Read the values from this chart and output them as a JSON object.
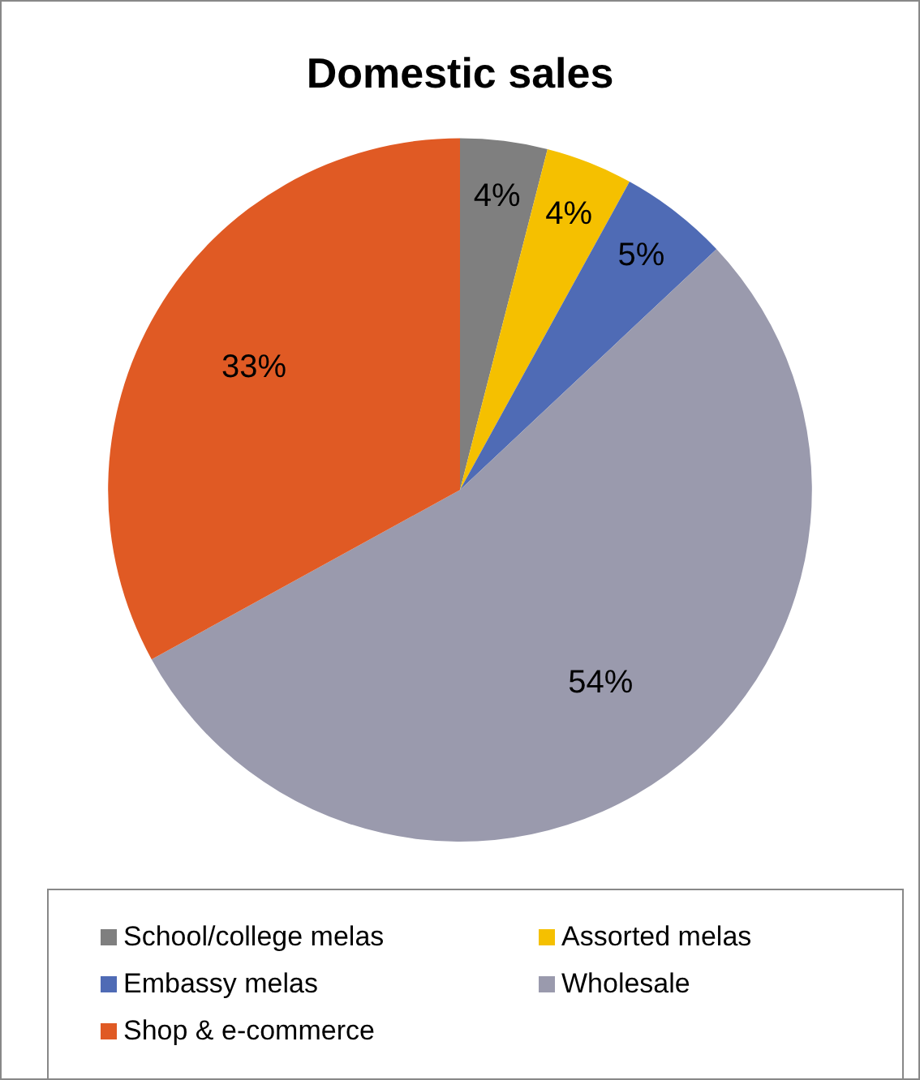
{
  "chart_data": {
    "type": "pie",
    "title": "Domestic sales",
    "categories": [
      "School/college melas",
      "Assorted melas",
      "Embassy melas",
      "Wholesale",
      "Shop & e-commerce"
    ],
    "values": [
      4,
      4,
      5,
      54,
      33
    ],
    "colors": [
      "#7f7f7f",
      "#f5c000",
      "#4f6bb5",
      "#9a9aad",
      "#e05a24"
    ],
    "value_labels": [
      "4%",
      "4%",
      "5%",
      "54%",
      "33%"
    ],
    "legend": "bottom"
  }
}
